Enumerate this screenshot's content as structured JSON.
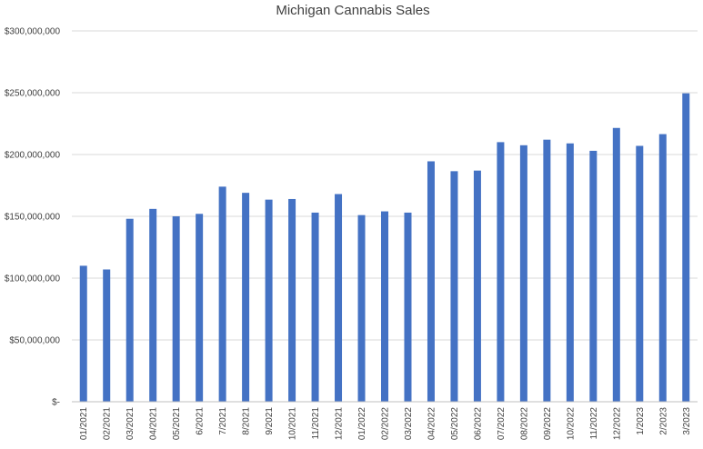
{
  "chart_data": {
    "type": "bar",
    "title": "Michigan Cannabis Sales",
    "xlabel": "",
    "ylabel": "",
    "ylim": [
      0,
      300000000
    ],
    "yticks": [
      0,
      50000000,
      100000000,
      150000000,
      200000000,
      250000000,
      300000000
    ],
    "ytick_labels": [
      "$-",
      "$50,000,000",
      "$100,000,000",
      "$150,000,000",
      "$200,000,000",
      "$250,000,000",
      "$300,000,000"
    ],
    "bar_color": "#4472c4",
    "grid": true,
    "legend": "none",
    "categories": [
      "01/2021",
      "02/2021",
      "03/2021",
      "04/2021",
      "05/2021",
      "6/2021",
      "7/2021",
      "8/2021",
      "9/2021",
      "10/2021",
      "11/2021",
      "12/2021",
      "01/2022",
      "02/2022",
      "03/2022",
      "04/2022",
      "05/2022",
      "06/2022",
      "07/2022",
      "08/2022",
      "09/2022",
      "10/2022",
      "11/2022",
      "12/2022",
      "1/2023",
      "2/2023",
      "3/2023"
    ],
    "values": [
      110000000,
      107000000,
      148000000,
      156000000,
      150000000,
      152000000,
      174000000,
      169000000,
      163500000,
      164000000,
      153000000,
      168000000,
      151000000,
      154000000,
      153000000,
      194500000,
      186500000,
      187000000,
      210000000,
      207500000,
      212000000,
      209000000,
      203000000,
      221500000,
      207000000,
      216500000,
      249500000
    ]
  }
}
